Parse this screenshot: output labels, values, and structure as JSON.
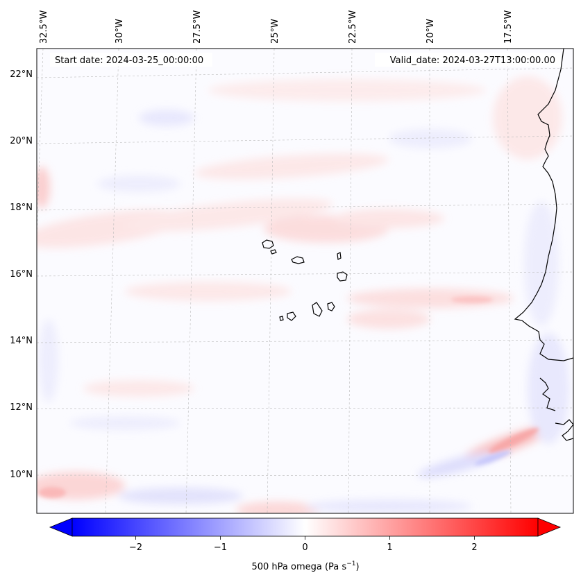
{
  "map": {
    "start_label": "Start date: 2024-03-25_00:00:00",
    "valid_label": "Valid_date: 2024-03-27T13:00:00.00",
    "lon_ticks": [
      "32.5°W",
      "30°W",
      "27.5°W",
      "25°W",
      "22.5°W",
      "20°W",
      "17.5°W"
    ],
    "lat_ticks": [
      "22°N",
      "20°N",
      "18°N",
      "16°N",
      "14°N",
      "12°N",
      "10°N"
    ],
    "variable": "500 hPa omega",
    "units": "Pa s",
    "units_exponent": "−1"
  },
  "colorbar": {
    "ticks": [
      "−2",
      "−1",
      "0",
      "1",
      "2"
    ],
    "tick_values": [
      -2,
      -1,
      0,
      1,
      2
    ],
    "range": [
      -2.75,
      2.75
    ],
    "cmap": "bwr",
    "low_color": "#0000ff",
    "mid_color": "#ffffff",
    "high_color": "#ff0000"
  }
}
